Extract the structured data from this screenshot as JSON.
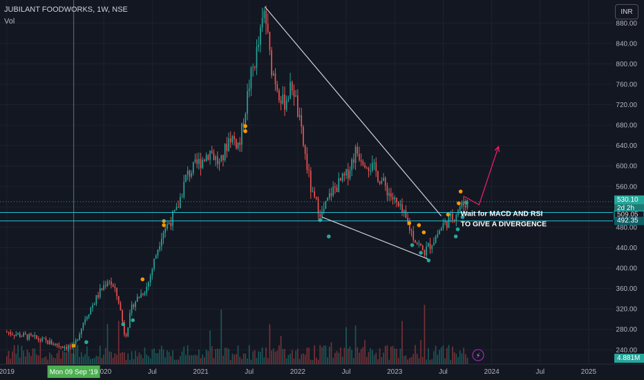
{
  "header": {
    "symbol_line": "JUBILANT FOODWORKS, 1W, NSE",
    "indicator": "Vol",
    "currency_button": "INR"
  },
  "colors": {
    "bg": "#131722",
    "up": "#26a69a",
    "down": "#ef5350",
    "grid": "#1e222d",
    "trendline": "#d1d4dc",
    "hline": "#22c5d6",
    "arrow": "#e91e63",
    "crosshair": "#4caf50",
    "dot_orange": "#ff9800",
    "dot_teal": "#26a69a"
  },
  "chart_data": {
    "type": "candlestick",
    "title": "JUBILANT FOODWORKS, 1W, NSE",
    "y_ticks": [
      240,
      280,
      320,
      360,
      400,
      440,
      480,
      520,
      560,
      600,
      640,
      680,
      720,
      760,
      800,
      840,
      880
    ],
    "ylim": [
      212,
      925
    ],
    "x_ticks": [
      {
        "label": "2019",
        "t": 2019.0
      },
      {
        "label": "2020",
        "t": 2020.0
      },
      {
        "label": "Jul",
        "t": 2020.5
      },
      {
        "label": "2021",
        "t": 2021.0
      },
      {
        "label": "Jul",
        "t": 2021.5
      },
      {
        "label": "2022",
        "t": 2022.0
      },
      {
        "label": "Jul",
        "t": 2022.5
      },
      {
        "label": "2023",
        "t": 2023.0
      },
      {
        "label": "Jul",
        "t": 2023.5
      },
      {
        "label": "2024",
        "t": 2024.0
      },
      {
        "label": "Jul",
        "t": 2024.5
      },
      {
        "label": "2025",
        "t": 2025.0
      }
    ],
    "xlim": [
      2018.93,
      2025.25
    ],
    "price_path": [
      [
        2019.0,
        275
      ],
      [
        2019.3,
        262
      ],
      [
        2019.55,
        248
      ],
      [
        2019.69,
        245
      ],
      [
        2019.8,
        300
      ],
      [
        2019.95,
        350
      ],
      [
        2020.05,
        380
      ],
      [
        2020.15,
        340
      ],
      [
        2020.22,
        265
      ],
      [
        2020.3,
        330
      ],
      [
        2020.45,
        365
      ],
      [
        2020.6,
        470
      ],
      [
        2020.75,
        510
      ],
      [
        2020.85,
        580
      ],
      [
        2021.0,
        610
      ],
      [
        2021.1,
        630
      ],
      [
        2021.2,
        600
      ],
      [
        2021.3,
        660
      ],
      [
        2021.4,
        640
      ],
      [
        2021.5,
        760
      ],
      [
        2021.6,
        840
      ],
      [
        2021.66,
        905
      ],
      [
        2021.72,
        800
      ],
      [
        2021.85,
        720
      ],
      [
        2021.95,
        760
      ],
      [
        2022.05,
        650
      ],
      [
        2022.15,
        540
      ],
      [
        2022.25,
        505
      ],
      [
        2022.35,
        550
      ],
      [
        2022.5,
        580
      ],
      [
        2022.6,
        630
      ],
      [
        2022.7,
        610
      ],
      [
        2022.8,
        590
      ],
      [
        2022.95,
        545
      ],
      [
        2023.1,
        500
      ],
      [
        2023.2,
        460
      ],
      [
        2023.3,
        430
      ],
      [
        2023.4,
        455
      ],
      [
        2023.5,
        485
      ],
      [
        2023.6,
        500
      ],
      [
        2023.67,
        520
      ],
      [
        2023.75,
        530
      ]
    ],
    "labels": {
      "last_price": "530.10",
      "countdown": "2d 2h",
      "level_1": "509.05",
      "level_2": "492.35",
      "volume_value": "4.881M",
      "crosshair_date": "Mon 09 Sep '19"
    },
    "horizontal_levels": [
      509.05,
      492.35
    ],
    "crosshair_t": 2019.69,
    "annotations": [
      {
        "text": "Wait for MACD AND RSI",
        "t": 2023.68,
        "p": 502
      },
      {
        "text": "TO GIVE A DIVERGENCE",
        "t": 2023.68,
        "p": 482
      }
    ],
    "trendlines": [
      {
        "t1": 2021.66,
        "p1": 912,
        "t2": 2023.48,
        "p2": 502
      },
      {
        "t1": 2022.25,
        "p1": 500,
        "t2": 2023.34,
        "p2": 418
      }
    ],
    "arrow_path": [
      [
        2023.72,
        540
      ],
      [
        2023.87,
        524
      ],
      [
        2024.07,
        638
      ]
    ]
  }
}
